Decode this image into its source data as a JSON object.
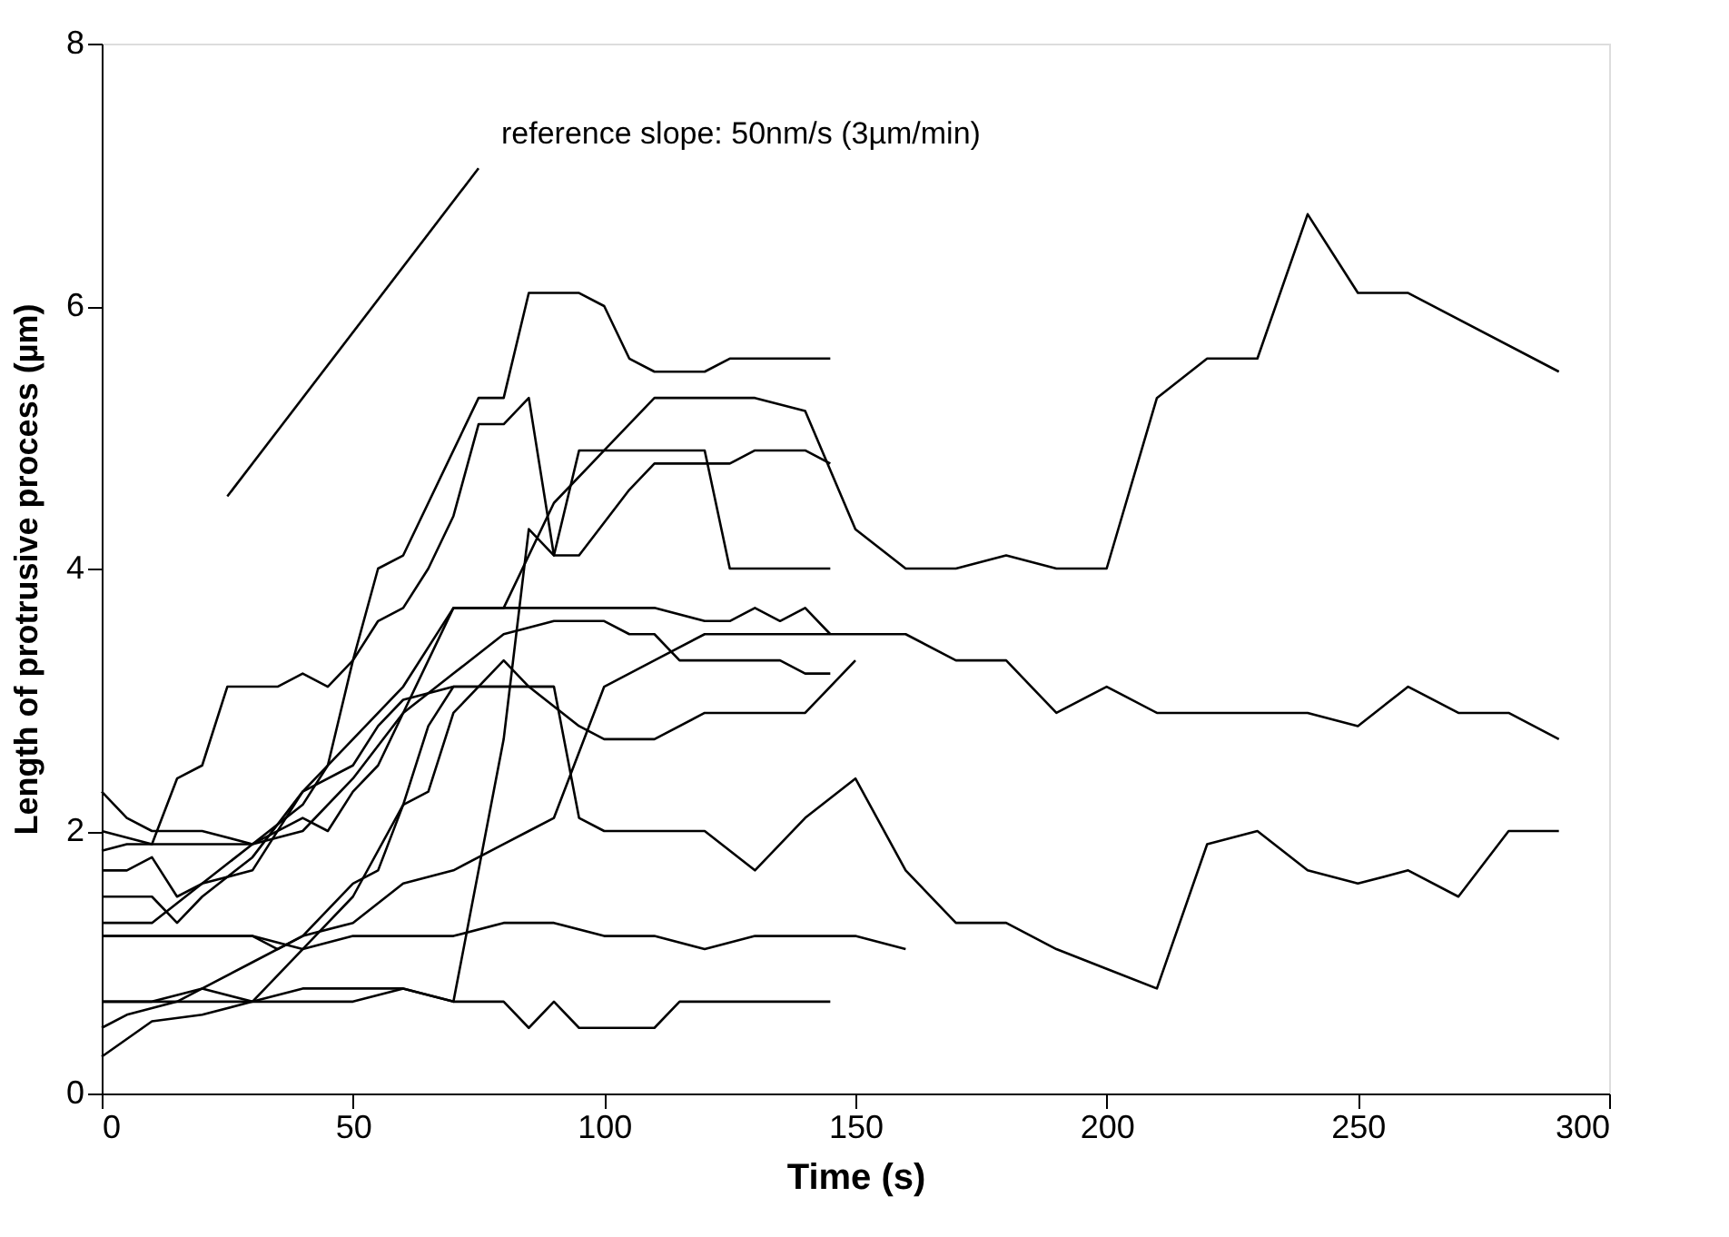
{
  "chart_data": {
    "type": "line",
    "xlabel": "Time (s)",
    "ylabel": "Length of protrusive process  (µm)",
    "xlim": [
      0,
      300
    ],
    "xticks": [
      0,
      50,
      100,
      150,
      200,
      250,
      300
    ],
    "ylim": [
      0,
      8
    ],
    "yticks": [
      0,
      2,
      4,
      6,
      8
    ],
    "grid": false,
    "marker": "none",
    "line_style": "solid",
    "annotations": [
      "reference slope: 50nm/s (3µm/min)"
    ],
    "series": [
      {
        "color": "#000000",
        "x": [
          0,
          5,
          10,
          15,
          20,
          25,
          35,
          40,
          45,
          50,
          55,
          60,
          75,
          80,
          85,
          95,
          100,
          105,
          110,
          120,
          125,
          145
        ],
        "values": [
          1.85,
          1.9,
          1.9,
          2.4,
          2.5,
          3.1,
          3.1,
          3.2,
          3.1,
          3.3,
          4.0,
          4.1,
          5.3,
          5.3,
          6.1,
          6.1,
          6.0,
          5.6,
          5.5,
          5.5,
          5.6,
          5.6
        ]
      },
      {
        "color": "#000000",
        "x": [
          0,
          10,
          20,
          30,
          40,
          45,
          50,
          55,
          60,
          65,
          70,
          75,
          80,
          85,
          90,
          95,
          105,
          110,
          125,
          130,
          140,
          145
        ],
        "values": [
          1.3,
          1.3,
          1.6,
          1.9,
          2.2,
          2.5,
          3.3,
          3.6,
          3.7,
          4.0,
          4.4,
          5.1,
          5.1,
          5.3,
          4.1,
          4.1,
          4.6,
          4.8,
          4.8,
          4.9,
          4.9,
          4.8
        ]
      },
      {
        "color": "#000000",
        "x": [
          0,
          10,
          15,
          20,
          30,
          40,
          50,
          60,
          70,
          80,
          90,
          100,
          110,
          130,
          140,
          150,
          160,
          170,
          180,
          190,
          200,
          210,
          220,
          230,
          240,
          250,
          260,
          290
        ],
        "values": [
          1.5,
          1.5,
          1.3,
          1.5,
          1.8,
          2.3,
          2.7,
          3.1,
          3.7,
          3.7,
          4.5,
          4.9,
          5.3,
          5.3,
          5.2,
          4.3,
          4.0,
          4.0,
          4.1,
          4.0,
          4.0,
          5.3,
          5.6,
          5.6,
          6.7,
          6.1,
          6.1,
          5.5
        ]
      },
      {
        "color": "#000000",
        "x": [
          0,
          10,
          20,
          30,
          40,
          50,
          60,
          70,
          80,
          85,
          90,
          95,
          110,
          120,
          125,
          145
        ],
        "values": [
          0.7,
          0.7,
          0.8,
          0.7,
          0.8,
          0.8,
          0.8,
          0.7,
          2.7,
          4.3,
          4.1,
          4.9,
          4.9,
          4.9,
          4.0,
          4.0
        ]
      },
      {
        "color": "#000000",
        "x": [
          0,
          5,
          10,
          20,
          30,
          40,
          45,
          50,
          55,
          60,
          70,
          85,
          110,
          120,
          125,
          130,
          135,
          140,
          145
        ],
        "values": [
          2.3,
          2.1,
          2.0,
          2.0,
          1.9,
          2.1,
          2.0,
          2.3,
          2.5,
          2.9,
          3.7,
          3.7,
          3.7,
          3.6,
          3.6,
          3.7,
          3.6,
          3.7,
          3.5
        ]
      },
      {
        "color": "#000000",
        "x": [
          0,
          10,
          20,
          30,
          40,
          50,
          60,
          70,
          80,
          90,
          100,
          105,
          110,
          115,
          135,
          140,
          145
        ],
        "values": [
          2.0,
          1.9,
          1.9,
          1.9,
          2.0,
          2.4,
          2.9,
          3.2,
          3.5,
          3.6,
          3.6,
          3.5,
          3.5,
          3.3,
          3.3,
          3.2,
          3.2
        ]
      },
      {
        "color": "#000000",
        "x": [
          0,
          5,
          10,
          15,
          20,
          30,
          40,
          50,
          55,
          60,
          70,
          80,
          85,
          95,
          100,
          110,
          120,
          140,
          150
        ],
        "values": [
          1.7,
          1.7,
          1.8,
          1.5,
          1.6,
          1.7,
          2.3,
          2.5,
          2.8,
          3.0,
          3.1,
          3.1,
          3.1,
          2.8,
          2.7,
          2.7,
          2.9,
          2.9,
          3.3
        ]
      },
      {
        "color": "#000000",
        "x": [
          0,
          5,
          15,
          20,
          30,
          40,
          50,
          60,
          70,
          80,
          85,
          90,
          100,
          110,
          120,
          160,
          170,
          180,
          190,
          200,
          210,
          240,
          250,
          260,
          270,
          280,
          290
        ],
        "values": [
          0.5,
          0.6,
          0.7,
          0.8,
          1.0,
          1.2,
          1.3,
          1.6,
          1.7,
          1.9,
          2.0,
          2.1,
          3.1,
          3.3,
          3.5,
          3.5,
          3.3,
          3.3,
          2.9,
          3.1,
          2.9,
          2.9,
          2.8,
          3.1,
          2.9,
          2.9,
          2.7
        ]
      },
      {
        "color": "#000000",
        "x": [
          0,
          10,
          20,
          30,
          35,
          40,
          50,
          55,
          60,
          65,
          70,
          90,
          95,
          100,
          120,
          130,
          140,
          150,
          160,
          170,
          180,
          190,
          200,
          210,
          220,
          230,
          240,
          250,
          260,
          270,
          280,
          290
        ],
        "values": [
          1.2,
          1.2,
          1.2,
          1.2,
          1.1,
          1.2,
          1.6,
          1.7,
          2.2,
          2.8,
          3.1,
          3.1,
          2.1,
          2.0,
          2.0,
          1.7,
          2.1,
          2.4,
          1.7,
          1.3,
          1.3,
          1.1,
          0.95,
          0.8,
          1.9,
          2.0,
          1.7,
          1.6,
          1.7,
          1.5,
          2.0,
          2.0
        ]
      },
      {
        "color": "#000000",
        "x": [
          0,
          20,
          30,
          40,
          50,
          60,
          70,
          80,
          90,
          100,
          110,
          120,
          130,
          150,
          160
        ],
        "values": [
          1.2,
          1.2,
          1.2,
          1.1,
          1.2,
          1.2,
          1.2,
          1.3,
          1.3,
          1.2,
          1.2,
          1.1,
          1.2,
          1.2,
          1.1
        ]
      },
      {
        "color": "#000000",
        "x": [
          0,
          10,
          20,
          30,
          40,
          50,
          60,
          70,
          80,
          85,
          90,
          95,
          105,
          110,
          115,
          145
        ],
        "values": [
          0.7,
          0.7,
          0.7,
          0.7,
          0.7,
          0.7,
          0.8,
          0.7,
          0.7,
          0.5,
          0.7,
          0.5,
          0.5,
          0.5,
          0.7,
          0.7
        ]
      },
      {
        "color": "#000000",
        "x": [
          0,
          10,
          20,
          30,
          40,
          50,
          60,
          65,
          70,
          80,
          85,
          90
        ],
        "values": [
          0.28,
          0.55,
          0.6,
          0.7,
          1.1,
          1.5,
          2.2,
          2.3,
          2.9,
          3.3,
          3.1,
          3.1
        ]
      },
      {
        "type": "line",
        "color": "#000000",
        "x": [
          25,
          75
        ],
        "values": [
          4.55,
          7.05
        ]
      }
    ]
  }
}
